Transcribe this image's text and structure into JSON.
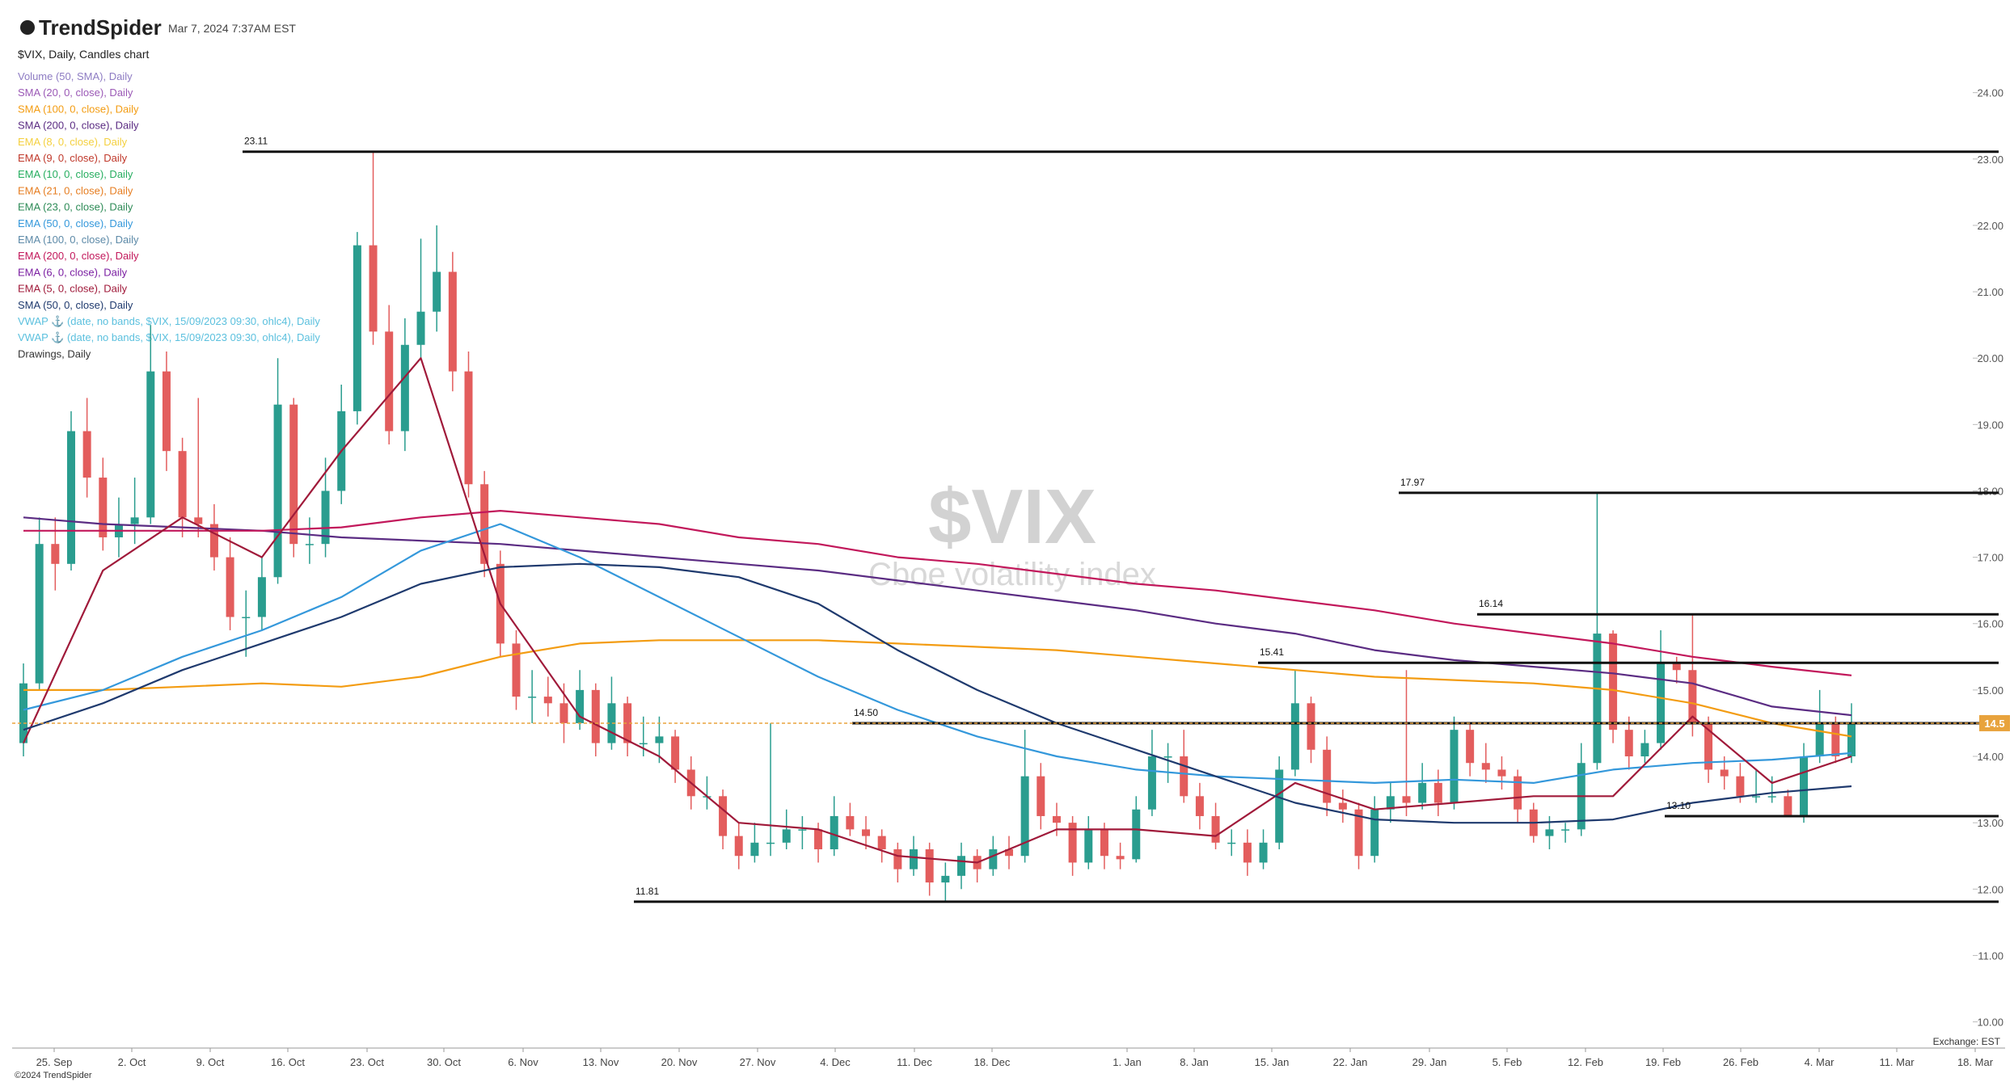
{
  "header": {
    "brand": "TrendSpider",
    "timestamp": "Mar 7, 2024 7:37AM EST"
  },
  "footer": {
    "copyright": "©2024 TrendSpider",
    "exchange": "Exchange: EST"
  },
  "chart_data": {
    "type": "candlestick",
    "title": "$VIX, Daily, Candles chart",
    "watermark": {
      "symbol": "$VIX",
      "name": "Cboe volatility index"
    },
    "up_color": "#2a9d8f",
    "down_color": "#e35d5d",
    "last_price_color": "#e8a33d",
    "ylim": [
      9.8,
      24.3
    ],
    "yticks": [
      {
        "value": 10,
        "label": "10.00"
      },
      {
        "value": 11,
        "label": "11.00"
      },
      {
        "value": 12,
        "label": "12.00"
      },
      {
        "value": 13,
        "label": "13.00"
      },
      {
        "value": 14,
        "label": "14.00"
      },
      {
        "value": 15,
        "label": "15.00"
      },
      {
        "value": 16,
        "label": "16.00"
      },
      {
        "value": 17,
        "label": "17.00"
      },
      {
        "value": 18,
        "label": "18.00"
      },
      {
        "value": 19,
        "label": "19.00"
      },
      {
        "value": 20,
        "label": "20.00"
      },
      {
        "value": 21,
        "label": "21.00"
      },
      {
        "value": 22,
        "label": "22.00"
      },
      {
        "value": 23,
        "label": "23.00"
      },
      {
        "value": 24,
        "label": "24.00"
      }
    ],
    "categories": [
      "25. Sep",
      "2. Oct",
      "9. Oct",
      "16. Oct",
      "23. Oct",
      "30. Oct",
      "6. Nov",
      "13. Nov",
      "20. Nov",
      "27. Nov",
      "4. Dec",
      "11. Dec",
      "18. Dec",
      null,
      "1. Jan",
      "8. Jan",
      "15. Jan",
      "22. Jan",
      "29. Jan",
      "5. Feb",
      "12. Feb",
      "19. Feb",
      "26. Feb",
      "4. Mar",
      "11. Mar",
      "18. Mar"
    ],
    "levels": [
      23.11,
      17.97,
      16.14,
      15.41,
      {
        "value": 14.5,
        "label": "14.50"
      },
      {
        "value": 13.1,
        "label": "13.10"
      },
      11.81
    ],
    "candles": [
      [
        14.2,
        15.4,
        14.0,
        15.1
      ],
      [
        15.1,
        17.6,
        15.0,
        17.2
      ],
      [
        17.2,
        17.6,
        16.5,
        16.9
      ],
      [
        16.9,
        19.2,
        16.8,
        18.9
      ],
      [
        18.9,
        19.4,
        17.9,
        18.2
      ],
      [
        18.2,
        18.5,
        17.1,
        17.3
      ],
      [
        17.3,
        17.9,
        17.0,
        17.5
      ],
      [
        17.5,
        18.2,
        17.2,
        17.6
      ],
      [
        17.6,
        20.5,
        17.5,
        19.8
      ],
      [
        19.8,
        20.1,
        18.3,
        18.6
      ],
      [
        18.6,
        18.8,
        17.3,
        17.6
      ],
      [
        17.6,
        19.4,
        17.3,
        17.5
      ],
      [
        17.5,
        17.8,
        16.8,
        17.0
      ],
      [
        17.0,
        17.3,
        15.9,
        16.1
      ],
      [
        16.1,
        16.5,
        15.5,
        16.1
      ],
      [
        16.1,
        17.0,
        15.9,
        16.7
      ],
      [
        16.7,
        20.0,
        16.6,
        19.3
      ],
      [
        19.3,
        19.4,
        17.0,
        17.2
      ],
      [
        17.2,
        17.6,
        16.9,
        17.2
      ],
      [
        17.2,
        18.5,
        17.0,
        18.0
      ],
      [
        18.0,
        19.6,
        17.8,
        19.2
      ],
      [
        19.2,
        21.9,
        19.0,
        21.7
      ],
      [
        21.7,
        23.11,
        20.2,
        20.4
      ],
      [
        20.4,
        20.8,
        18.7,
        18.9
      ],
      [
        18.9,
        20.6,
        18.6,
        20.2
      ],
      [
        20.2,
        21.8,
        20.0,
        20.7
      ],
      [
        20.7,
        22.0,
        20.4,
        21.3
      ],
      [
        21.3,
        21.6,
        19.5,
        19.8
      ],
      [
        19.8,
        20.1,
        17.9,
        18.1
      ],
      [
        18.1,
        18.3,
        16.7,
        16.9
      ],
      [
        16.9,
        17.1,
        15.5,
        15.7
      ],
      [
        15.7,
        15.9,
        14.7,
        14.9
      ],
      [
        14.9,
        15.3,
        14.5,
        14.9
      ],
      [
        14.9,
        15.2,
        14.6,
        14.8
      ],
      [
        14.8,
        15.1,
        14.2,
        14.5
      ],
      [
        14.5,
        15.3,
        14.4,
        15.0
      ],
      [
        15.0,
        15.1,
        14.0,
        14.2
      ],
      [
        14.2,
        15.2,
        14.1,
        14.8
      ],
      [
        14.8,
        14.9,
        14.0,
        14.2
      ],
      [
        14.2,
        14.6,
        14.0,
        14.2
      ],
      [
        14.2,
        14.6,
        13.9,
        14.3
      ],
      [
        14.3,
        14.4,
        13.6,
        13.8
      ],
      [
        13.8,
        14.0,
        13.2,
        13.4
      ],
      [
        13.4,
        13.7,
        13.2,
        13.4
      ],
      [
        13.4,
        13.5,
        12.6,
        12.8
      ],
      [
        12.8,
        13.0,
        12.3,
        12.5
      ],
      [
        12.5,
        13.0,
        12.4,
        12.7
      ],
      [
        12.7,
        14.5,
        12.5,
        12.7
      ],
      [
        12.7,
        13.2,
        12.6,
        12.9
      ],
      [
        12.9,
        13.1,
        12.6,
        12.9
      ],
      [
        12.9,
        13.0,
        12.4,
        12.6
      ],
      [
        12.6,
        13.4,
        12.5,
        13.1
      ],
      [
        13.1,
        13.3,
        12.8,
        12.9
      ],
      [
        12.9,
        13.1,
        12.6,
        12.8
      ],
      [
        12.8,
        12.9,
        12.4,
        12.6
      ],
      [
        12.6,
        12.7,
        12.1,
        12.3
      ],
      [
        12.3,
        12.8,
        12.2,
        12.6
      ],
      [
        12.6,
        12.7,
        11.9,
        12.1
      ],
      [
        12.1,
        12.4,
        11.81,
        12.2
      ],
      [
        12.2,
        12.7,
        12.0,
        12.5
      ],
      [
        12.5,
        12.6,
        12.1,
        12.3
      ],
      [
        12.3,
        12.8,
        12.2,
        12.6
      ],
      [
        12.6,
        12.8,
        12.3,
        12.5
      ],
      [
        12.5,
        14.4,
        12.4,
        13.7
      ],
      [
        13.7,
        13.9,
        12.9,
        13.1
      ],
      [
        13.1,
        13.3,
        12.8,
        13.0
      ],
      [
        13.0,
        13.1,
        12.2,
        12.4
      ],
      [
        12.4,
        13.1,
        12.3,
        12.9
      ],
      [
        12.9,
        13.0,
        12.3,
        12.5
      ],
      [
        12.5,
        12.7,
        12.3,
        12.45
      ],
      [
        12.45,
        13.4,
        12.4,
        13.2
      ],
      [
        13.2,
        14.4,
        13.1,
        14.0
      ],
      [
        14.0,
        14.2,
        13.6,
        14.0
      ],
      [
        14.0,
        14.4,
        13.3,
        13.4
      ],
      [
        13.4,
        13.6,
        12.9,
        13.1
      ],
      [
        13.1,
        13.3,
        12.6,
        12.7
      ],
      [
        12.7,
        12.9,
        12.5,
        12.7
      ],
      [
        12.7,
        12.9,
        12.2,
        12.4
      ],
      [
        12.4,
        12.9,
        12.3,
        12.7
      ],
      [
        12.7,
        14.0,
        12.6,
        13.8
      ],
      [
        13.8,
        15.3,
        13.7,
        14.8
      ],
      [
        14.8,
        14.9,
        13.9,
        14.1
      ],
      [
        14.1,
        14.3,
        13.1,
        13.3
      ],
      [
        13.3,
        13.5,
        13.0,
        13.2
      ],
      [
        13.2,
        13.3,
        12.3,
        12.5
      ],
      [
        12.5,
        13.4,
        12.4,
        13.2
      ],
      [
        13.2,
        13.6,
        13.0,
        13.4
      ],
      [
        13.4,
        15.3,
        13.1,
        13.3
      ],
      [
        13.3,
        13.9,
        13.2,
        13.6
      ],
      [
        13.6,
        13.8,
        13.1,
        13.3
      ],
      [
        13.3,
        14.6,
        13.2,
        14.4
      ],
      [
        14.4,
        14.5,
        13.7,
        13.9
      ],
      [
        13.9,
        14.2,
        13.6,
        13.8
      ],
      [
        13.8,
        14.0,
        13.5,
        13.7
      ],
      [
        13.7,
        13.8,
        13.0,
        13.2
      ],
      [
        13.2,
        13.3,
        12.7,
        12.8
      ],
      [
        12.8,
        13.1,
        12.6,
        12.9
      ],
      [
        12.9,
        13.0,
        12.7,
        12.9
      ],
      [
        12.9,
        14.2,
        12.8,
        13.9
      ],
      [
        13.9,
        17.97,
        13.8,
        15.85
      ],
      [
        15.85,
        15.9,
        14.2,
        14.4
      ],
      [
        14.4,
        14.6,
        13.8,
        14.0
      ],
      [
        14.0,
        14.4,
        13.9,
        14.2
      ],
      [
        14.2,
        15.9,
        14.1,
        15.4
      ],
      [
        15.4,
        15.5,
        15.1,
        15.3
      ],
      [
        15.3,
        16.14,
        14.3,
        14.5
      ],
      [
        14.5,
        14.6,
        13.6,
        13.8
      ],
      [
        13.8,
        14.0,
        13.5,
        13.7
      ],
      [
        13.7,
        13.9,
        13.3,
        13.4
      ],
      [
        13.4,
        13.8,
        13.3,
        13.4
      ],
      [
        13.4,
        13.7,
        13.3,
        13.4
      ],
      [
        13.4,
        13.5,
        13.1,
        13.1
      ],
      [
        13.1,
        14.2,
        13.0,
        14.0
      ],
      [
        14.0,
        15.0,
        13.9,
        14.5
      ],
      [
        14.5,
        14.6,
        13.9,
        14.0
      ],
      [
        14.0,
        14.8,
        13.9,
        14.5
      ]
    ],
    "indicators": [
      {
        "name": "Volume (50, SMA), Daily",
        "color": "#8e7cc3"
      },
      {
        "name": "SMA (20, 0, close), Daily",
        "color": "#9b59b6"
      },
      {
        "name": "SMA (100, 0, close), Daily",
        "color": "#f39c12",
        "values": [
          15.0,
          15.0,
          15.05,
          15.1,
          15.05,
          15.2,
          15.5,
          15.7,
          15.75,
          15.75,
          15.75,
          15.7,
          15.65,
          15.6,
          15.5,
          15.4,
          15.3,
          15.2,
          15.15,
          15.1,
          15.0,
          14.8,
          14.5,
          14.3
        ]
      },
      {
        "name": "SMA (200, 0, close), Daily",
        "color": "#5b2c83",
        "values": [
          17.6,
          17.5,
          17.45,
          17.4,
          17.3,
          17.25,
          17.2,
          17.1,
          17.0,
          16.9,
          16.8,
          16.65,
          16.5,
          16.35,
          16.2,
          16.0,
          15.85,
          15.6,
          15.45,
          15.35,
          15.25,
          15.1,
          14.75,
          14.62
        ]
      },
      {
        "name": "EMA (8, 0, close), Daily",
        "color": "#f4d03f"
      },
      {
        "name": "EMA (9, 0, close), Daily",
        "color": "#c0392b"
      },
      {
        "name": "EMA (10, 0, close), Daily",
        "color": "#27ae60"
      },
      {
        "name": "EMA (21, 0, close), Daily",
        "color": "#e67e22"
      },
      {
        "name": "EMA (23, 0, close), Daily",
        "color": "#2e8b57"
      },
      {
        "name": "EMA (50, 0, close), Daily",
        "color": "#3498db",
        "values": [
          14.7,
          15.0,
          15.5,
          15.9,
          16.4,
          17.1,
          17.5,
          17.0,
          16.4,
          15.8,
          15.2,
          14.7,
          14.3,
          14.0,
          13.8,
          13.7,
          13.65,
          13.6,
          13.65,
          13.6,
          13.8,
          13.9,
          13.95,
          14.05
        ]
      },
      {
        "name": "EMA (100, 0, close), Daily",
        "color": "#5d8aa8"
      },
      {
        "name": "EMA (200, 0, close), Daily",
        "color": "#c2185b",
        "values": [
          17.4,
          17.4,
          17.4,
          17.4,
          17.45,
          17.6,
          17.7,
          17.6,
          17.5,
          17.3,
          17.2,
          17.0,
          16.9,
          16.75,
          16.6,
          16.5,
          16.35,
          16.2,
          16.0,
          15.85,
          15.7,
          15.5,
          15.35,
          15.22
        ]
      },
      {
        "name": "EMA (6, 0, close), Daily",
        "color": "#7b1fa2"
      },
      {
        "name": "EMA (5, 0, close), Daily",
        "color": "#a01a3a",
        "values": [
          14.2,
          16.8,
          17.6,
          17.0,
          18.6,
          20.0,
          16.3,
          14.6,
          14.0,
          13.0,
          12.9,
          12.5,
          12.4,
          12.9,
          12.9,
          12.8,
          13.6,
          13.2,
          13.3,
          13.4,
          13.4,
          14.6,
          13.6,
          14.0
        ]
      },
      {
        "name": "SMA (50, 0, close), Daily",
        "color": "#1f3a6e",
        "values": [
          14.4,
          14.8,
          15.3,
          15.7,
          16.1,
          16.6,
          16.85,
          16.9,
          16.85,
          16.7,
          16.3,
          15.6,
          15.0,
          14.5,
          14.1,
          13.7,
          13.3,
          13.05,
          13.0,
          13.0,
          13.05,
          13.3,
          13.45,
          13.55
        ]
      },
      {
        "name": "VWAP ⚓ (date, no bands, $VIX, 15/09/2023 09:30, ohlc4), Daily",
        "color": "#5bc0de"
      },
      {
        "name": "VWAP ⚓ (date, no bands, $VIX, 15/09/2023 09:30, ohlc4), Daily",
        "color": "#5bc0de"
      },
      {
        "name": "Drawings, Daily",
        "color": "#333333"
      }
    ]
  }
}
